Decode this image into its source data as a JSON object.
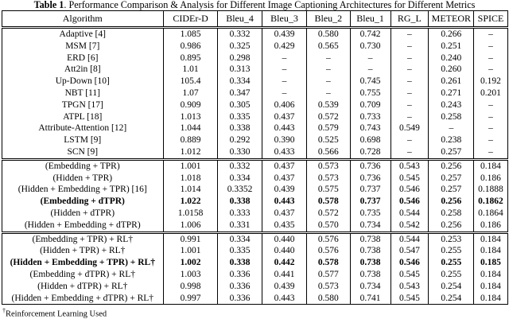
{
  "title": {
    "label": "Table 1",
    "rest": ". Performance Comparison & Analysis for Different Image Captioning Architectures for Different Metrics"
  },
  "table": {
    "columns": [
      "Algorithm",
      "CIDEr-D",
      "Bleu_4",
      "Bleu_3",
      "Bleu_2",
      "Bleu_1",
      "RG_L",
      "METEOR",
      "SPICE"
    ],
    "sections": [
      {
        "rows": [
          {
            "algorithm": "Adaptive [4]",
            "values": [
              "1.085",
              "0.332",
              "0.439",
              "0.580",
              "0.742",
              "–",
              "0.266",
              "–"
            ],
            "bold": false
          },
          {
            "algorithm": "MSM [7]",
            "values": [
              "0.986",
              "0.325",
              "0.429",
              "0.565",
              "0.730",
              "–",
              "0.251",
              "–"
            ],
            "bold": false
          },
          {
            "algorithm": "ERD [6]",
            "values": [
              "0.895",
              "0.298",
              "–",
              "–",
              "–",
              "–",
              "0.240",
              "–"
            ],
            "bold": false
          },
          {
            "algorithm": "Att2in [8]",
            "values": [
              "1.01",
              "0.313",
              "–",
              "–",
              "–",
              "–",
              "0.260",
              "–"
            ],
            "bold": false
          },
          {
            "algorithm": "Up-Down [10]",
            "values": [
              "105.4",
              "0.334",
              "–",
              "–",
              "0.745",
              "–",
              "0.261",
              "0.192"
            ],
            "bold": false
          },
          {
            "algorithm": "NBT [11]",
            "values": [
              "1.07",
              "0.347",
              "–",
              "–",
              "0.755",
              "–",
              "0.271",
              "0.201"
            ],
            "bold": false
          },
          {
            "algorithm": "TPGN [17]",
            "values": [
              "0.909",
              "0.305",
              "0.406",
              "0.539",
              "0.709",
              "–",
              "0.243",
              "–"
            ],
            "bold": false
          },
          {
            "algorithm": "ATPL [18]",
            "values": [
              "1.013",
              "0.335",
              "0.437",
              "0.572",
              "0.733",
              "–",
              "0.258",
              "–"
            ],
            "bold": false
          },
          {
            "algorithm": "Attribute-Attention [12]",
            "values": [
              "1.044",
              "0.338",
              "0.443",
              "0.579",
              "0.743",
              "0.549",
              "–",
              "–"
            ],
            "bold": false
          },
          {
            "algorithm": "LSTM [9]",
            "values": [
              "0.889",
              "0.292",
              "0.390",
              "0.525",
              "0.698",
              "–",
              "0.238",
              "–"
            ],
            "bold": false
          },
          {
            "algorithm": "SCN [9]",
            "values": [
              "1.012",
              "0.330",
              "0.433",
              "0.566",
              "0.728",
              "–",
              "0.257",
              "–"
            ],
            "bold": false
          }
        ]
      },
      {
        "rows": [
          {
            "algorithm": "(Embedding + TPR)",
            "values": [
              "1.001",
              "0.332",
              "0.437",
              "0.573",
              "0.736",
              "0.543",
              "0.256",
              "0.184"
            ],
            "bold": false
          },
          {
            "algorithm": "(Hidden + TPR)",
            "values": [
              "1.018",
              "0.334",
              "0.437",
              "0.573",
              "0.736",
              "0.545",
              "0.257",
              "0.186"
            ],
            "bold": false
          },
          {
            "algorithm": "(Hidden + Embedding + TPR) [16]",
            "values": [
              "1.014",
              "0.3352",
              "0.439",
              "0.575",
              "0.737",
              "0.546",
              "0.257",
              "0.1888"
            ],
            "bold": false
          },
          {
            "algorithm": "(Embedding + dTPR)",
            "values": [
              "1.022",
              "0.338",
              "0.443",
              "0.578",
              "0.737",
              "0.546",
              "0.256",
              "0.1862"
            ],
            "bold": true
          },
          {
            "algorithm": "(Hidden + dTPR)",
            "values": [
              "1.0158",
              "0.333",
              "0.437",
              "0.572",
              "0.735",
              "0.544",
              "0.258",
              "0.1864"
            ],
            "bold": false
          },
          {
            "algorithm": "(Hidden + Embedding + dTPR)",
            "values": [
              "1.006",
              "0.331",
              "0.435",
              "0.570",
              "0.734",
              "0.542",
              "0.256",
              "0.186"
            ],
            "bold": false
          }
        ]
      },
      {
        "rows": [
          {
            "algorithm": "(Embedding + TPR) + RL†",
            "values": [
              "0.991",
              "0.334",
              "0.440",
              "0.576",
              "0.738",
              "0.544",
              "0.253",
              "0.184"
            ],
            "bold": false
          },
          {
            "algorithm": "(Hidden + TPR) + RL†",
            "values": [
              "1.001",
              "0.335",
              "0.440",
              "0.576",
              "0.738",
              "0.547",
              "0.255",
              "0.184"
            ],
            "bold": false
          },
          {
            "algorithm": "(Hidden + Embedding + TPR) + RL†",
            "values": [
              "1.002",
              "0.338",
              "0.442",
              "0.578",
              "0.738",
              "0.546",
              "0.255",
              "0.185"
            ],
            "bold": true
          },
          {
            "algorithm": "(Embedding + dTPR) + RL†",
            "values": [
              "1.003",
              "0.336",
              "0.441",
              "0.577",
              "0.738",
              "0.545",
              "0.255",
              "0.184"
            ],
            "bold": false
          },
          {
            "algorithm": "(Hidden + dTPR) + RL†",
            "values": [
              "0.998",
              "0.336",
              "0.439",
              "0.573",
              "0.734",
              "0.543",
              "0.254",
              "0.184"
            ],
            "bold": false
          },
          {
            "algorithm": "(Hidden + Embedding + dTPR) + RL†",
            "values": [
              "0.997",
              "0.336",
              "0.443",
              "0.580",
              "0.741",
              "0.545",
              "0.254",
              "0.184"
            ],
            "bold": false
          }
        ]
      }
    ]
  },
  "footnote": {
    "marker": "†",
    "text": "Reinforcement Learning Used"
  }
}
